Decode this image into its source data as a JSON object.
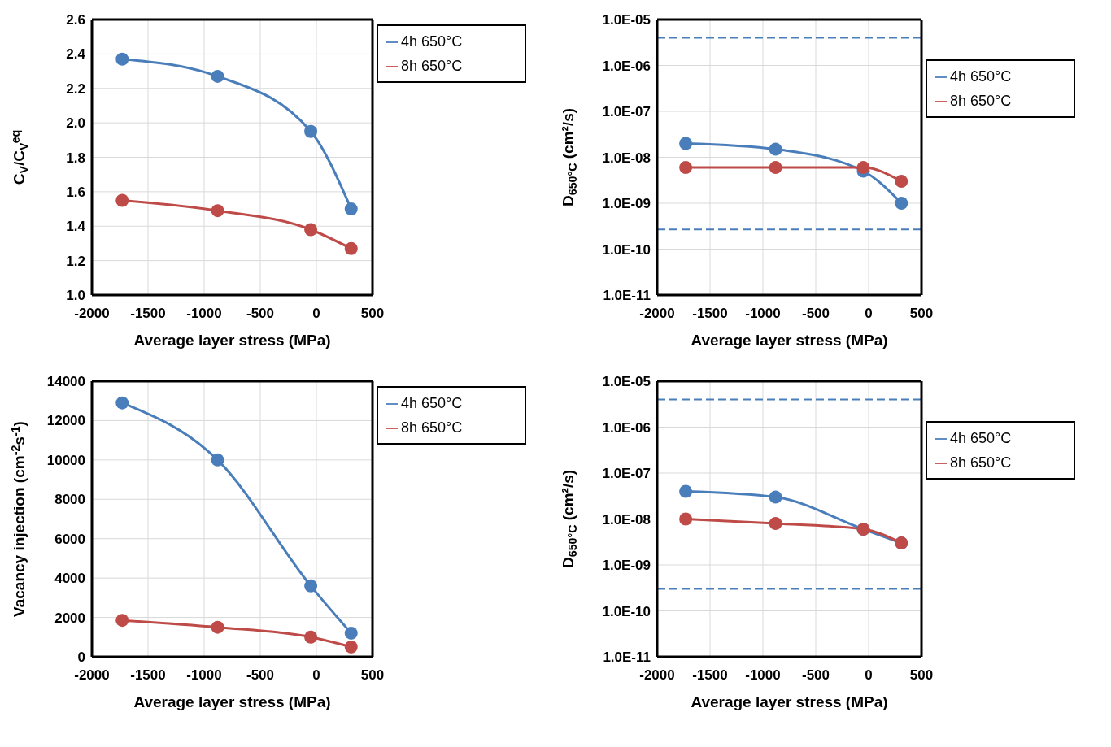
{
  "chart_data": [
    {
      "type": "line",
      "xlabel": "Average layer stress (MPa)",
      "ylabel": "C$_{V}$/C$_{V}$$^{eq}$",
      "x": [
        -1730,
        -880,
        -50,
        310
      ],
      "xlim": [
        -2000,
        500
      ],
      "xticks": [
        -2000,
        -1500,
        -1000,
        -500,
        0,
        500
      ],
      "ylim": [
        1.0,
        2.6
      ],
      "yticks": [
        {
          "value": 1.0,
          "label": "1.0"
        },
        1.2,
        1.4,
        1.6,
        1.8,
        {
          "value": 2.0,
          "label": "2.0"
        },
        2.2,
        2.4,
        2.6
      ],
      "grid": true,
      "legend": "top right",
      "marker": "circle",
      "line_style": "solid",
      "series": [
        {
          "name": "4h 650°C",
          "color": "#4a7ebb",
          "values": [
            2.37,
            2.27,
            1.95,
            1.5
          ]
        },
        {
          "name": "8h 650°C",
          "color": "#be4b48",
          "values": [
            1.55,
            1.49,
            1.38,
            1.27
          ]
        }
      ]
    },
    {
      "type": "line",
      "xlabel": "Average layer stress (MPa)",
      "ylabel": "D$_{650°C}$ (cm²/s)",
      "x": [
        -1730,
        -880,
        -50,
        310
      ],
      "xlim": [
        -2000,
        500
      ],
      "xticks": [
        -2000,
        -1500,
        -1000,
        -500,
        0,
        500
      ],
      "log": "y",
      "ylim": [
        1e-11,
        1e-05
      ],
      "yticks": [
        {
          "value": 1e-11,
          "label": "1.0E-11"
        },
        {
          "value": 1e-10,
          "label": "1.0E-10"
        },
        {
          "value": 1e-09,
          "label": "1.0E-09"
        },
        {
          "value": 1e-08,
          "label": "1.0E-08"
        },
        {
          "value": 1e-07,
          "label": "1.0E-07"
        },
        {
          "value": 1e-06,
          "label": "1.0E-06"
        },
        {
          "value": 1e-05,
          "label": "1.0E-05"
        }
      ],
      "grid": true,
      "legend": "top right",
      "marker": "circle",
      "line_style": "solid",
      "ref_lines": [
        {
          "axis": "y",
          "value": 4e-06,
          "color": "#4a7ebb",
          "line_style": "dashed"
        },
        {
          "axis": "y",
          "value": 2.7e-10,
          "color": "#4a7ebb",
          "line_style": "dashed"
        }
      ],
      "series": [
        {
          "name": "4h 650°C",
          "color": "#4a7ebb",
          "values": [
            2e-08,
            1.5e-08,
            5e-09,
            1e-09
          ]
        },
        {
          "name": "8h 650°C",
          "color": "#be4b48",
          "values": [
            6e-09,
            6e-09,
            6e-09,
            3e-09
          ]
        }
      ]
    },
    {
      "type": "line",
      "xlabel": "Average layer stress (MPa)",
      "ylabel": "Vacancy injection (cm$^{-2}$s$^{-1}$)",
      "x": [
        -1730,
        -880,
        -50,
        310
      ],
      "xlim": [
        -2000,
        500
      ],
      "xticks": [
        -2000,
        -1500,
        -1000,
        -500,
        0,
        500
      ],
      "ylim": [
        0,
        14000
      ],
      "yticks": [
        0,
        2000,
        4000,
        6000,
        8000,
        10000,
        12000,
        14000
      ],
      "grid": true,
      "legend": "top right",
      "marker": "circle",
      "line_style": "solid",
      "series": [
        {
          "name": "4h 650°C",
          "color": "#4a7ebb",
          "values": [
            12900,
            10000,
            3600,
            1200
          ]
        },
        {
          "name": "8h 650°C",
          "color": "#be4b48",
          "values": [
            1850,
            1500,
            1000,
            500
          ]
        }
      ]
    },
    {
      "type": "line",
      "xlabel": "Average layer stress (MPa)",
      "ylabel": "D$_{650°C}$ (cm²/s)",
      "x": [
        -1730,
        -880,
        -50,
        310
      ],
      "xlim": [
        -2000,
        500
      ],
      "xticks": [
        -2000,
        -1500,
        -1000,
        -500,
        0,
        500
      ],
      "log": "y",
      "ylim": [
        1e-11,
        1e-05
      ],
      "yticks": [
        {
          "value": 1e-11,
          "label": "1.0E-11"
        },
        {
          "value": 1e-10,
          "label": "1.0E-10"
        },
        {
          "value": 1e-09,
          "label": "1.0E-09"
        },
        {
          "value": 1e-08,
          "label": "1.0E-08"
        },
        {
          "value": 1e-07,
          "label": "1.0E-07"
        },
        {
          "value": 1e-06,
          "label": "1.0E-06"
        },
        {
          "value": 1e-05,
          "label": "1.0E-05"
        }
      ],
      "grid": true,
      "legend": "top right",
      "marker": "circle",
      "line_style": "solid",
      "ref_lines": [
        {
          "axis": "y",
          "value": 4e-06,
          "color": "#4a7ebb",
          "line_style": "dashed"
        },
        {
          "axis": "y",
          "value": 3e-10,
          "color": "#4a7ebb",
          "line_style": "dashed"
        }
      ],
      "series": [
        {
          "name": "4h 650°C",
          "color": "#4a7ebb",
          "values": [
            4e-08,
            3e-08,
            6e-09,
            3e-09
          ]
        },
        {
          "name": "8h 650°C",
          "color": "#be4b48",
          "values": [
            1e-08,
            8e-09,
            6e-09,
            3e-09
          ]
        }
      ]
    }
  ]
}
